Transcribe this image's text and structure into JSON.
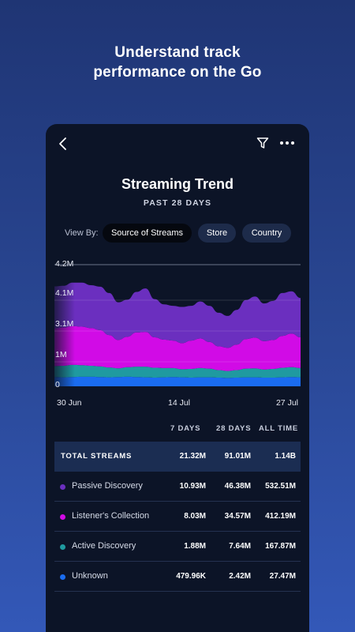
{
  "headline": {
    "line1": "Understand track",
    "line2": "performance on the Go"
  },
  "app": {
    "title": "Streaming Trend",
    "subtitle": "PAST 28 DAYS",
    "view_by_label": "View By:",
    "view_by_options": [
      {
        "label": "Source of Streams",
        "selected": true
      },
      {
        "label": "Store",
        "selected": false
      },
      {
        "label": "Country",
        "selected": false
      }
    ]
  },
  "chart_data": {
    "type": "area",
    "stacked": true,
    "y_tick_labels": [
      "4.2M",
      "4.1M",
      "3.1M",
      "1M",
      "0"
    ],
    "x_tick_labels": [
      "30 Jun",
      "14 Jul",
      "27 Jul"
    ],
    "x": [
      "30 Jun",
      "1 Jul",
      "2 Jul",
      "3 Jul",
      "4 Jul",
      "5 Jul",
      "6 Jul",
      "7 Jul",
      "8 Jul",
      "9 Jul",
      "10 Jul",
      "11 Jul",
      "12 Jul",
      "13 Jul",
      "14 Jul",
      "15 Jul",
      "16 Jul",
      "17 Jul",
      "18 Jul",
      "19 Jul",
      "20 Jul",
      "21 Jul",
      "22 Jul",
      "23 Jul",
      "24 Jul",
      "25 Jul",
      "26 Jul",
      "27 Jul"
    ],
    "series": [
      {
        "name": "Unknown",
        "color": "#1a6cf0",
        "values": [
          0.32,
          0.31,
          0.32,
          0.33,
          0.33,
          0.32,
          0.31,
          0.32,
          0.33,
          0.32,
          0.31,
          0.3,
          0.31,
          0.32,
          0.31,
          0.3,
          0.31,
          0.31,
          0.3,
          0.29,
          0.3,
          0.31,
          0.31,
          0.3,
          0.3,
          0.31,
          0.32,
          0.31
        ]
      },
      {
        "name": "Active Discovery",
        "color": "#1f9aa0",
        "values": [
          0.38,
          0.4,
          0.42,
          0.4,
          0.38,
          0.37,
          0.34,
          0.3,
          0.33,
          0.36,
          0.37,
          0.34,
          0.32,
          0.31,
          0.28,
          0.3,
          0.32,
          0.3,
          0.26,
          0.24,
          0.26,
          0.3,
          0.31,
          0.28,
          0.3,
          0.33,
          0.34,
          0.32
        ]
      },
      {
        "name": "Listener's Collection",
        "color": "#d10be6",
        "values": [
          1.3,
          1.32,
          1.34,
          1.33,
          1.3,
          1.25,
          1.12,
          0.98,
          1.05,
          1.18,
          1.2,
          1.05,
          0.98,
          0.95,
          0.9,
          0.98,
          1.02,
          0.92,
          0.82,
          0.8,
          0.88,
          1.02,
          1.06,
          0.98,
          1.0,
          1.1,
          1.16,
          1.06
        ]
      },
      {
        "name": "Passive Discovery",
        "color": "#6b2fbf",
        "values": [
          1.45,
          1.44,
          1.5,
          1.52,
          1.48,
          1.5,
          1.45,
          1.3,
          1.28,
          1.4,
          1.5,
          1.32,
          1.22,
          1.2,
          1.25,
          1.2,
          1.28,
          1.25,
          1.16,
          1.1,
          1.2,
          1.35,
          1.42,
          1.3,
          1.35,
          1.48,
          1.46,
          1.36
        ]
      }
    ]
  },
  "table": {
    "columns": [
      "7 DAYS",
      "28 DAYS",
      "ALL TIME"
    ],
    "total": {
      "label": "TOTAL STREAMS",
      "values": [
        "21.32M",
        "91.01M",
        "1.14B"
      ]
    },
    "rows": [
      {
        "label": "Passive Discovery",
        "color": "#6b2fbf",
        "values": [
          "10.93M",
          "46.38M",
          "532.51M"
        ]
      },
      {
        "label": "Listener's Collection",
        "color": "#d10be6",
        "values": [
          "8.03M",
          "34.57M",
          "412.19M"
        ]
      },
      {
        "label": "Active Discovery",
        "color": "#1f9aa0",
        "values": [
          "1.88M",
          "7.64M",
          "167.87M"
        ]
      },
      {
        "label": "Unknown",
        "color": "#1a6cf0",
        "values": [
          "479.96K",
          "2.42M",
          "27.47M"
        ]
      }
    ]
  },
  "icons": {
    "back": "chevron-left-icon",
    "filter": "filter-icon",
    "more": "more-horizontal-icon"
  }
}
